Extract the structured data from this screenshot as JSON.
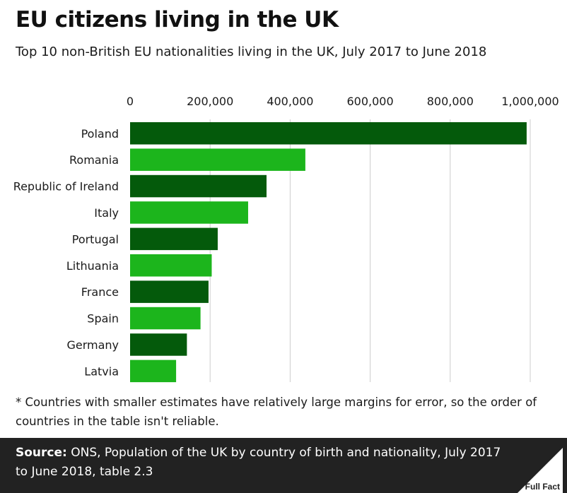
{
  "title": "EU citizens living in the UK",
  "subtitle": "Top 10 non-British EU nationalities living in the UK, July 2017 to June 2018",
  "footnote": "* Countries with smaller estimates have relatively large margins for error, so the order of countries in the table isn't reliable.",
  "source": {
    "label": "Source:",
    "text": "ONS, Population of the UK by country of birth and nationality, July 2017 to June 2018, table 2.3"
  },
  "logo": {
    "text": "Full Fact",
    "icon": "full-fact-triangle-icon"
  },
  "colors": {
    "dark": "#045a0b",
    "light": "#1cb51c",
    "gridline": "#cccccc",
    "footer": "#222222"
  },
  "chart_data": {
    "type": "bar",
    "orientation": "horizontal",
    "title": "",
    "xlabel": "",
    "ylabel": "",
    "xlim": [
      0,
      1000000
    ],
    "xticks": [
      0,
      200000,
      400000,
      600000,
      800000,
      1000000
    ],
    "xtick_labels": [
      "0",
      "200,000",
      "400,000",
      "600,000",
      "800,000",
      "1,000,000"
    ],
    "grid": "vertical",
    "legend": "none",
    "categories": [
      "Poland",
      "Romania",
      "Republic of Ireland",
      "Italy",
      "Portugal",
      "Lithuania",
      "France",
      "Spain",
      "Germany",
      "Latvia"
    ],
    "values": [
      991000,
      438000,
      341000,
      295000,
      219000,
      204000,
      196000,
      176000,
      142000,
      115000
    ],
    "bar_colors": [
      "#045a0b",
      "#1cb51c",
      "#045a0b",
      "#1cb51c",
      "#045a0b",
      "#1cb51c",
      "#045a0b",
      "#1cb51c",
      "#045a0b",
      "#1cb51c"
    ]
  }
}
